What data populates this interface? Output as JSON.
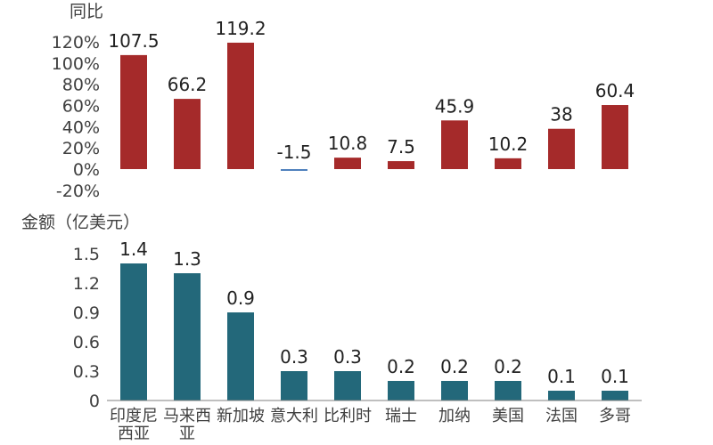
{
  "categories": [
    [
      "印度尼",
      "西亚"
    ],
    [
      "马来西",
      "亚"
    ],
    [
      "新加坡"
    ],
    [
      "意大利"
    ],
    [
      "比利时"
    ],
    [
      "瑞士"
    ],
    [
      "加纳"
    ],
    [
      "美国"
    ],
    [
      "法国"
    ],
    [
      "多哥"
    ]
  ],
  "chart_data": [
    {
      "type": "bar",
      "ylabel": "同比",
      "categories": [
        "印度尼西亚",
        "马来西亚",
        "新加坡",
        "意大利",
        "比利时",
        "瑞士",
        "加纳",
        "美国",
        "法国",
        "多哥"
      ],
      "values": [
        107.5,
        66.2,
        119.2,
        -1.5,
        10.8,
        7.5,
        45.9,
        10.2,
        38,
        60.4
      ],
      "data_labels": [
        "107.5",
        "66.2",
        "119.2",
        "-1.5",
        "10.8",
        "7.5",
        "45.9",
        "10.2",
        "38",
        "60.4"
      ],
      "ylim": [
        -20,
        120
      ],
      "yticks": [
        "120%",
        "100%",
        "80%",
        "60%",
        "40%",
        "20%",
        "0%",
        "-20%"
      ],
      "colors": {
        "positive": "#A52A2A",
        "negative": "#4F81BD"
      }
    },
    {
      "type": "bar",
      "ylabel": "金额（亿美元）",
      "categories": [
        "印度尼西亚",
        "马来西亚",
        "新加坡",
        "意大利",
        "比利时",
        "瑞士",
        "加纳",
        "美国",
        "法国",
        "多哥"
      ],
      "values": [
        1.4,
        1.3,
        0.9,
        0.3,
        0.3,
        0.2,
        0.2,
        0.2,
        0.1,
        0.1
      ],
      "data_labels": [
        "1.4",
        "1.3",
        "0.9",
        "0.3",
        "0.3",
        "0.2",
        "0.2",
        "0.2",
        "0.1",
        "0.1"
      ],
      "ylim": [
        0,
        1.5
      ],
      "yticks": [
        "1.5",
        "1.2",
        "0.9",
        "0.6",
        "0.3",
        "0"
      ],
      "colors": {
        "bar": "#23687A",
        "axis": "#7F7F7F"
      }
    }
  ]
}
